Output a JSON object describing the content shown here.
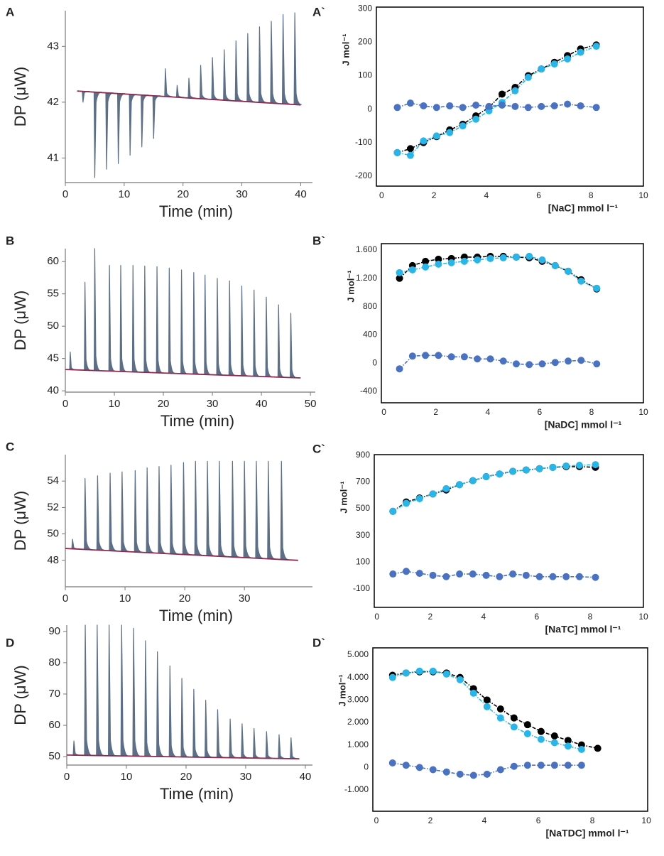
{
  "chart_data": [
    {
      "type": "thermogram",
      "label": "A",
      "xlabel": "Time (min)",
      "ylabel": "DP (μW)",
      "xlim": [
        0,
        42
      ],
      "ylim": [
        40.56,
        43.64
      ],
      "xticks": [
        0,
        10,
        20,
        30,
        40
      ],
      "yticks": [
        41,
        42,
        43
      ],
      "series": [
        {
          "mark": "spike",
          "color": "#5d6f86",
          "x": [
            3,
            5,
            7,
            9,
            11,
            13,
            15,
            17,
            19,
            21,
            23,
            25,
            27,
            29,
            31,
            33,
            35,
            37,
            39
          ],
          "values": [
            42.0,
            40.65,
            40.8,
            40.9,
            41.05,
            41.2,
            41.35,
            42.6,
            42.3,
            42.43,
            42.66,
            42.8,
            42.94,
            43.1,
            43.23,
            43.35,
            43.45,
            43.57,
            43.6
          ]
        },
        {
          "mark": "line",
          "color": "#8b2c52",
          "x": [
            2,
            40
          ],
          "values": [
            42.2,
            41.95
          ]
        }
      ]
    },
    {
      "type": "scatter",
      "label": "A`",
      "xlabel": "[NaC] mmol l⁻¹",
      "ylabel": "J mol⁻¹",
      "xlim": [
        -0.2,
        10
      ],
      "ylim": [
        -230,
        305
      ],
      "xticks": [
        0,
        2,
        4,
        6,
        8,
        10
      ],
      "yticks": [
        -200,
        -100,
        0,
        100,
        200,
        300
      ],
      "x": [
        0.6,
        1.1,
        1.6,
        2.1,
        2.6,
        3.1,
        3.6,
        4.1,
        4.6,
        5.1,
        5.6,
        6.1,
        6.6,
        7.1,
        7.6,
        8.2
      ],
      "series": [
        {
          "color": "#000000",
          "values": [
            -130,
            -118,
            -100,
            -82,
            -62,
            -45,
            -20,
            5,
            45,
            65,
            100,
            120,
            140,
            160,
            180,
            192
          ]
        },
        {
          "color": "#29b5e8",
          "values": [
            -130,
            -138,
            -95,
            -80,
            -70,
            -50,
            -30,
            -5,
            20,
            55,
            95,
            120,
            135,
            150,
            170,
            188
          ]
        },
        {
          "color": "#4a72c0",
          "values": [
            5,
            18,
            10,
            5,
            10,
            5,
            12,
            8,
            12,
            8,
            5,
            8,
            10,
            15,
            10,
            5
          ]
        }
      ]
    },
    {
      "type": "thermogram",
      "label": "B",
      "xlabel": "Time (min)",
      "ylabel": "DP (μW)",
      "xlim": [
        0,
        51
      ],
      "ylim": [
        39.8,
        62
      ],
      "xticks": [
        0,
        10,
        20,
        30,
        40,
        50
      ],
      "yticks": [
        40,
        45,
        50,
        55,
        60
      ],
      "series": [
        {
          "mark": "spike",
          "color": "#5d6f86",
          "x": [
            1,
            4,
            6,
            9,
            11.3,
            13.8,
            16.2,
            18.7,
            21.2,
            23.7,
            26.2,
            28.5,
            31,
            33.5,
            36,
            38.5,
            41,
            43.5,
            46
          ],
          "values": [
            46,
            56.8,
            62,
            59.4,
            59.4,
            59.4,
            59.3,
            59.2,
            59.0,
            58.7,
            58.3,
            57.9,
            57.4,
            57.0,
            56.2,
            55.6,
            54.5,
            53.3,
            52.0
          ]
        },
        {
          "mark": "line",
          "color": "#8b2c52",
          "x": [
            0,
            48
          ],
          "values": [
            43.3,
            42.0
          ]
        }
      ]
    },
    {
      "type": "scatter",
      "label": "B`",
      "xlabel": "[NaDC] mmol l⁻¹",
      "ylabel": "J mol⁻¹",
      "xlim": [
        -0.1,
        10
      ],
      "ylim": [
        -560,
        1690
      ],
      "xticks": [
        0,
        2,
        4,
        6,
        8,
        10
      ],
      "yticks": [
        -400,
        0,
        400,
        800,
        {
          "value": 1200,
          "label": "1.200"
        },
        {
          "value": 1600,
          "label": "1.600"
        }
      ],
      "x": [
        0.6,
        1.1,
        1.6,
        2.1,
        2.6,
        3.1,
        3.6,
        4.1,
        4.6,
        5.1,
        5.6,
        6.1,
        6.6,
        7.1,
        7.6,
        8.2
      ],
      "series": [
        {
          "color": "#000000",
          "values": [
            1200,
            1380,
            1440,
            1470,
            1480,
            1500,
            1500,
            1510,
            1510,
            1500,
            1490,
            1440,
            1380,
            1300,
            1180,
            1050
          ]
        },
        {
          "color": "#29b5e8",
          "values": [
            1280,
            1320,
            1360,
            1400,
            1420,
            1440,
            1460,
            1480,
            1490,
            1500,
            1510,
            1460,
            1380,
            1300,
            1160,
            1060
          ]
        },
        {
          "color": "#4a72c0",
          "values": [
            -80,
            100,
            110,
            110,
            90,
            90,
            60,
            60,
            30,
            -10,
            -20,
            -10,
            10,
            30,
            40,
            -10
          ]
        }
      ]
    },
    {
      "type": "thermogram",
      "label": "C",
      "xlabel": "Time (min)",
      "ylabel": "DP (μW)",
      "xlim": [
        0,
        41.4
      ],
      "ylim": [
        46,
        56
      ],
      "xticks": [
        0,
        10,
        20,
        30
      ],
      "yticks": [
        48,
        50,
        52,
        54
      ],
      "series": [
        {
          "mark": "spike",
          "color": "#5d6f86",
          "x": [
            1.2,
            3.3,
            5.4,
            7.5,
            9.5,
            11.7,
            13.7,
            15.7,
            17.7,
            19.8,
            21.8,
            23.8,
            25.8,
            28,
            30,
            32,
            34,
            36.2
          ],
          "values": [
            49.6,
            54.2,
            54.4,
            54.6,
            54.7,
            54.8,
            55.0,
            55.1,
            55.2,
            55.4,
            55.5,
            55.5,
            55.5,
            55.5,
            55.5,
            55.5,
            55.5,
            55.5
          ]
        },
        {
          "mark": "line",
          "color": "#8b2c52",
          "x": [
            0,
            39
          ],
          "values": [
            48.9,
            48.0
          ]
        }
      ]
    },
    {
      "type": "scatter",
      "label": "C`",
      "xlabel": "[NaTC] mmol l⁻¹",
      "ylabel": "J mol⁻¹",
      "xlim": [
        -0.1,
        10
      ],
      "ylim": [
        -240,
        905
      ],
      "xticks": [
        0,
        2,
        4,
        6,
        8,
        10
      ],
      "yticks": [
        -100,
        100,
        300,
        500,
        700,
        900
      ],
      "x": [
        0.6,
        1.1,
        1.6,
        2.1,
        2.6,
        3.1,
        3.6,
        4.1,
        4.6,
        5.1,
        5.6,
        6.1,
        6.6,
        7.1,
        7.6,
        8.2
      ],
      "series": [
        {
          "color": "#000000",
          "values": [
            480,
            550,
            580,
            610,
            640,
            680,
            710,
            740,
            760,
            780,
            790,
            800,
            810,
            815,
            815,
            810
          ]
        },
        {
          "color": "#29b5e8",
          "values": [
            480,
            540,
            575,
            610,
            650,
            680,
            710,
            740,
            760,
            780,
            790,
            800,
            810,
            820,
            825,
            830
          ]
        },
        {
          "color": "#4a72c0",
          "values": [
            10,
            30,
            15,
            0,
            -10,
            10,
            10,
            0,
            -10,
            10,
            0,
            -10,
            -10,
            -10,
            -10,
            -15
          ]
        }
      ]
    },
    {
      "type": "thermogram",
      "label": "D",
      "xlabel": "Time (min)",
      "ylabel": "DP (μW)",
      "xlim": [
        0,
        41.2
      ],
      "ylim": [
        47.3,
        92
      ],
      "xticks": [
        0,
        10,
        20,
        30,
        40
      ],
      "yticks": [
        50,
        60,
        70,
        80,
        90
      ],
      "series": [
        {
          "mark": "spike",
          "color": "#5d6f86",
          "x": [
            1.2,
            3.1,
            5.1,
            7.1,
            9.2,
            11.2,
            13.2,
            15.2,
            17.3,
            19.3,
            21.3,
            23.3,
            25.3,
            27.4,
            29.4,
            31.4,
            33.5,
            35.6,
            37.6
          ],
          "values": [
            55,
            92,
            92,
            92,
            92,
            91,
            87,
            83.5,
            79,
            75,
            71.5,
            68,
            65,
            62,
            60.5,
            59,
            58,
            57,
            56
          ]
        },
        {
          "mark": "line",
          "color": "#8b2c52",
          "x": [
            0,
            39
          ],
          "values": [
            50.5,
            49.3
          ]
        }
      ]
    },
    {
      "type": "scatter",
      "label": "D`",
      "xlabel": "[NaTDC] mmol l⁻¹",
      "ylabel": "J mol⁻¹",
      "xlim": [
        -0.13,
        10.05
      ],
      "ylim": [
        -1946,
        5315
      ],
      "xticks": [
        0,
        2,
        4,
        6,
        8,
        10
      ],
      "yticks": [
        {
          "value": -1000,
          "label": "-1.000"
        },
        0,
        {
          "value": 1000,
          "label": "1.000"
        },
        {
          "value": 2000,
          "label": "2.000"
        },
        {
          "value": 3000,
          "label": "3.000"
        },
        {
          "value": 4000,
          "label": "4.000"
        },
        {
          "value": 5000,
          "label": "5.000"
        }
      ],
      "x": [
        0.6,
        1.1,
        1.6,
        2.1,
        2.6,
        3.1,
        3.6,
        4.1,
        4.6,
        5.1,
        5.6,
        6.1,
        6.6,
        7.1,
        7.6,
        8.2
      ],
      "series": [
        {
          "color": "#000000",
          "values": [
            4100,
            4200,
            4250,
            4250,
            4200,
            4000,
            3500,
            3000,
            2600,
            2200,
            1900,
            1600,
            1400,
            1200,
            1000,
            850
          ]
        },
        {
          "color": "#29b5e8",
          "values": [
            4000,
            4200,
            4280,
            4280,
            4150,
            3900,
            3300,
            2700,
            2200,
            1800,
            1500,
            1250,
            1100,
            950,
            800,
            null
          ]
        },
        {
          "color": "#4a72c0",
          "values": [
            200,
            100,
            0,
            -100,
            -200,
            -300,
            -350,
            -300,
            -100,
            50,
            100,
            100,
            100,
            100,
            100,
            null
          ]
        }
      ]
    }
  ]
}
